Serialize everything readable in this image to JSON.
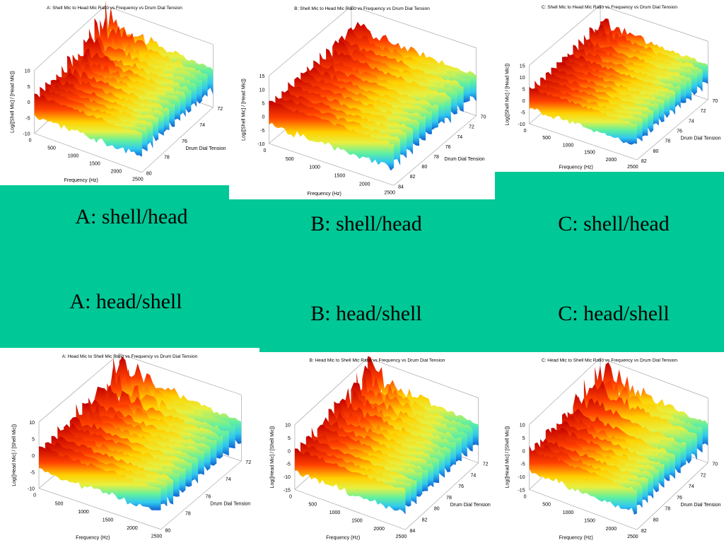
{
  "panels": [
    {
      "title": "A: Shell Mic to Head Mic Ratio vs Frequency vs Drum Dial Tension",
      "zlabel": "Log([Shell Mic] / [Head Mic])",
      "xlabel": "Frequency (Hz)",
      "ylabel": "Drum Dial Tension",
      "xticks": [
        "0",
        "500",
        "1000",
        "1500",
        "2000",
        "2500"
      ],
      "yticks": [
        "72",
        "74",
        "76",
        "78",
        "80"
      ],
      "zticks": [
        "10",
        "5",
        "0",
        "-5",
        "-10"
      ]
    },
    {
      "title": "B: Shell Mic to Head Mic Ratio vs Frequency vs Drum Dial Tension",
      "zlabel": "Log([Shell Mic] / [Head Mic])",
      "xlabel": "Frequency (Hz)",
      "ylabel": "Drum Dial Tension",
      "xticks": [
        "0",
        "500",
        "1000",
        "1500",
        "2000",
        "2500"
      ],
      "yticks": [
        "70",
        "72",
        "74",
        "76",
        "78",
        "80",
        "82",
        "84"
      ],
      "zticks": [
        "15",
        "10",
        "5",
        "0",
        "-5",
        "-10"
      ]
    },
    {
      "title": "C: Shell Mic to Head Mic Ratio vs Frequency vs Drum Dial Tension",
      "zlabel": "Log([Shell Mic] / [Head Mic])",
      "xlabel": "Frequency (Hz)",
      "ylabel": "Drum Dial Tension",
      "xticks": [
        "0",
        "500",
        "1000",
        "1500",
        "2000",
        "2500"
      ],
      "yticks": [
        "70",
        "72",
        "74",
        "76",
        "78",
        "80",
        "82"
      ],
      "zticks": [
        "15",
        "10",
        "5",
        "0",
        "-5",
        "-10"
      ]
    },
    {
      "title": "A: Head Mic to Shell Mic Ratio vs Frequency vs Drum Dial Tension",
      "zlabel": "Log([Head Mic] / [Shell Mic])",
      "xlabel": "Frequency (Hz)",
      "ylabel": "Drum Dial Tension",
      "xticks": [
        "0",
        "500",
        "1000",
        "1500",
        "2000",
        "2500"
      ],
      "yticks": [
        "72",
        "74",
        "76",
        "78",
        "80"
      ],
      "zticks": [
        "10",
        "5",
        "0",
        "-5",
        "-10"
      ]
    },
    {
      "title": "B: Head Mic to Shell Mic Ratio vs Frequency vs Drum Dial Tension",
      "zlabel": "Log([Head Mic] / [Shell Mic])",
      "xlabel": "Frequency (Hz)",
      "ylabel": "Drum Dial Tension",
      "xticks": [
        "0",
        "500",
        "1000",
        "1500",
        "2000",
        "2500"
      ],
      "yticks": [
        "72",
        "74",
        "76",
        "78",
        "80",
        "82",
        "84"
      ],
      "zticks": [
        "10",
        "5",
        "0",
        "-5",
        "-10",
        "-15"
      ]
    },
    {
      "title": "C: Head Mic to Shell Mic Ratio vs Frequency vs Drum Dial Tension",
      "zlabel": "Log([Head Mic] / [Shell Mic])",
      "xlabel": "Frequency (Hz)",
      "ylabel": "Drum Dial Tension",
      "xticks": [
        "0",
        "500",
        "1000",
        "1500",
        "2000",
        "2500"
      ],
      "yticks": [
        "70",
        "72",
        "74",
        "76",
        "78",
        "80",
        "82"
      ],
      "zticks": [
        "10",
        "5",
        "0",
        "-5",
        "-10",
        "-15"
      ]
    }
  ],
  "captions": [
    "A: shell/head",
    "A: head/shell",
    "B: shell/head",
    "B: head/shell",
    "C: shell/head",
    "C: head/shell"
  ]
}
